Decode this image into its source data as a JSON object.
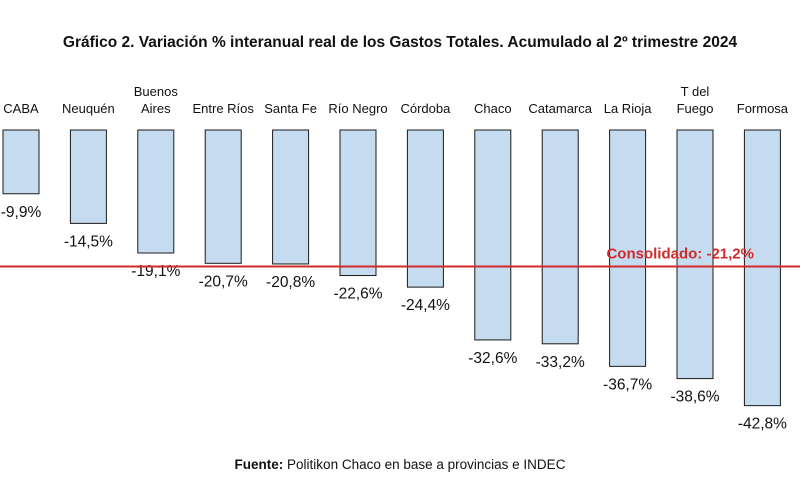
{
  "title": "Gráfico 2. Variación % interanual real de los Gastos Totales. Acumulado al 2º trimestre 2024",
  "source": {
    "label": "Fuente:",
    "text": "Politikon Chaco en base a provincias e INDEC"
  },
  "colors": {
    "bar_fill": "#c5dcf0",
    "bar_stroke": "#1a1a1a",
    "reference_line": "#d22a2a"
  },
  "chart_data": {
    "type": "bar",
    "title": "Gráfico 2. Variación % interanual real de los Gastos Totales. Acumulado al 2º trimestre 2024",
    "categories": [
      [
        "CABA"
      ],
      [
        "Neuquén"
      ],
      [
        "Buenos",
        "Aires"
      ],
      [
        "Entre Ríos"
      ],
      [
        "Santa Fe"
      ],
      [
        "Río Negro"
      ],
      [
        "Córdoba"
      ],
      [
        "Chaco"
      ],
      [
        "Catamarca"
      ],
      [
        "La Rioja"
      ],
      [
        "T del",
        "Fuego"
      ],
      [
        "Formosa"
      ]
    ],
    "values": [
      -9.9,
      -14.5,
      -19.1,
      -20.7,
      -20.8,
      -22.6,
      -24.4,
      -32.6,
      -33.2,
      -36.7,
      -38.6,
      -42.8
    ],
    "value_labels": [
      "-9,9%",
      "-14,5%",
      "-19,1%",
      "-20,7%",
      "-20,8%",
      "-22,6%",
      "-24,4%",
      "-32,6%",
      "-33,2%",
      "-36,7%",
      "-38,6%",
      "-42,8%"
    ],
    "reference_line": {
      "value": -21.2,
      "label": "Consolidado: -21,2%"
    },
    "ylim": [
      -45,
      0
    ],
    "xlabel": "",
    "ylabel": "",
    "grid": false,
    "legend": "none"
  }
}
